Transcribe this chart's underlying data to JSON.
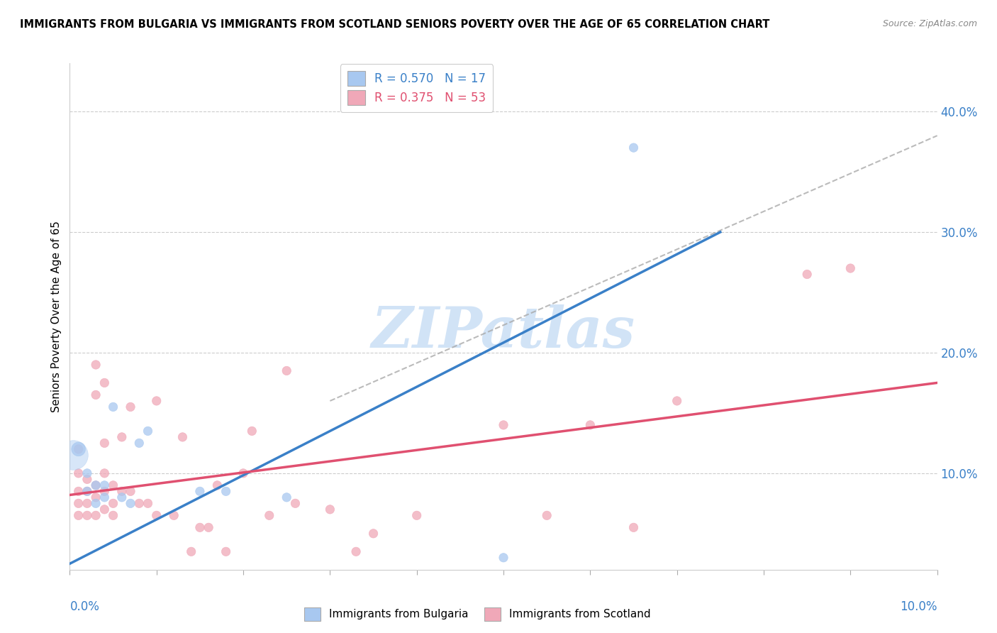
{
  "title": "IMMIGRANTS FROM BULGARIA VS IMMIGRANTS FROM SCOTLAND SENIORS POVERTY OVER THE AGE OF 65 CORRELATION CHART",
  "source": "Source: ZipAtlas.com",
  "ylabel": "Seniors Poverty Over the Age of 65",
  "xlim": [
    0.0,
    0.1
  ],
  "ylim": [
    0.02,
    0.44
  ],
  "legend_bulgaria_R": "0.570",
  "legend_bulgaria_N": "17",
  "legend_scotland_R": "0.375",
  "legend_scotland_N": "53",
  "bulgaria_color": "#a8c8f0",
  "scotland_color": "#f0a8b8",
  "bulgaria_line_color": "#3a80c8",
  "scotland_line_color": "#e05070",
  "watermark_text": "ZIPatlas",
  "watermark_color": "#cce0f5",
  "bulgaria_points": [
    [
      0.001,
      0.12
    ],
    [
      0.002,
      0.1
    ],
    [
      0.002,
      0.085
    ],
    [
      0.003,
      0.09
    ],
    [
      0.003,
      0.075
    ],
    [
      0.004,
      0.09
    ],
    [
      0.004,
      0.08
    ],
    [
      0.005,
      0.155
    ],
    [
      0.006,
      0.08
    ],
    [
      0.007,
      0.075
    ],
    [
      0.008,
      0.125
    ],
    [
      0.009,
      0.135
    ],
    [
      0.015,
      0.085
    ],
    [
      0.018,
      0.085
    ],
    [
      0.025,
      0.08
    ],
    [
      0.05,
      0.03
    ],
    [
      0.065,
      0.37
    ]
  ],
  "bulgaria_sizes": [
    200,
    80,
    80,
    80,
    80,
    80,
    80,
    80,
    80,
    80,
    80,
    80,
    80,
    80,
    80,
    80,
    80
  ],
  "scotland_points": [
    [
      0.001,
      0.12
    ],
    [
      0.001,
      0.1
    ],
    [
      0.001,
      0.085
    ],
    [
      0.001,
      0.075
    ],
    [
      0.001,
      0.065
    ],
    [
      0.002,
      0.095
    ],
    [
      0.002,
      0.085
    ],
    [
      0.002,
      0.075
    ],
    [
      0.002,
      0.065
    ],
    [
      0.003,
      0.19
    ],
    [
      0.003,
      0.165
    ],
    [
      0.003,
      0.09
    ],
    [
      0.003,
      0.08
    ],
    [
      0.003,
      0.065
    ],
    [
      0.004,
      0.175
    ],
    [
      0.004,
      0.125
    ],
    [
      0.004,
      0.1
    ],
    [
      0.004,
      0.085
    ],
    [
      0.004,
      0.07
    ],
    [
      0.005,
      0.09
    ],
    [
      0.005,
      0.075
    ],
    [
      0.005,
      0.065
    ],
    [
      0.006,
      0.13
    ],
    [
      0.006,
      0.085
    ],
    [
      0.007,
      0.155
    ],
    [
      0.007,
      0.085
    ],
    [
      0.008,
      0.075
    ],
    [
      0.009,
      0.075
    ],
    [
      0.01,
      0.16
    ],
    [
      0.01,
      0.065
    ],
    [
      0.012,
      0.065
    ],
    [
      0.013,
      0.13
    ],
    [
      0.014,
      0.035
    ],
    [
      0.015,
      0.055
    ],
    [
      0.016,
      0.055
    ],
    [
      0.017,
      0.09
    ],
    [
      0.018,
      0.035
    ],
    [
      0.02,
      0.1
    ],
    [
      0.021,
      0.135
    ],
    [
      0.023,
      0.065
    ],
    [
      0.025,
      0.185
    ],
    [
      0.026,
      0.075
    ],
    [
      0.03,
      0.07
    ],
    [
      0.033,
      0.035
    ],
    [
      0.035,
      0.05
    ],
    [
      0.04,
      0.065
    ],
    [
      0.05,
      0.14
    ],
    [
      0.055,
      0.065
    ],
    [
      0.06,
      0.14
    ],
    [
      0.065,
      0.055
    ],
    [
      0.07,
      0.16
    ],
    [
      0.085,
      0.265
    ],
    [
      0.09,
      0.27
    ]
  ],
  "scotland_sizes": [
    80,
    80,
    80,
    80,
    80,
    80,
    80,
    80,
    80,
    80,
    80,
    80,
    80,
    80,
    80,
    80,
    80,
    80,
    80,
    80,
    80,
    80,
    80,
    80,
    80,
    80,
    80,
    80,
    80,
    80,
    80,
    80,
    80,
    80,
    80,
    80,
    80,
    80,
    80,
    80,
    80,
    80,
    80,
    80,
    80,
    80,
    80,
    80,
    80,
    80,
    80,
    80,
    80
  ],
  "bulgaria_trend_x": [
    0.0,
    0.075
  ],
  "bulgaria_trend_y": [
    0.025,
    0.3
  ],
  "scotland_trend_x": [
    0.0,
    0.1
  ],
  "scotland_trend_y": [
    0.082,
    0.175
  ],
  "dashed_line_x": [
    0.03,
    0.1
  ],
  "dashed_line_y": [
    0.16,
    0.38
  ],
  "right_yticks": [
    0.1,
    0.2,
    0.3,
    0.4
  ],
  "right_yticklabels": [
    "10.0%",
    "20.0%",
    "30.0%",
    "40.0%"
  ],
  "grid_yticks": [
    0.1,
    0.2,
    0.3,
    0.4
  ]
}
